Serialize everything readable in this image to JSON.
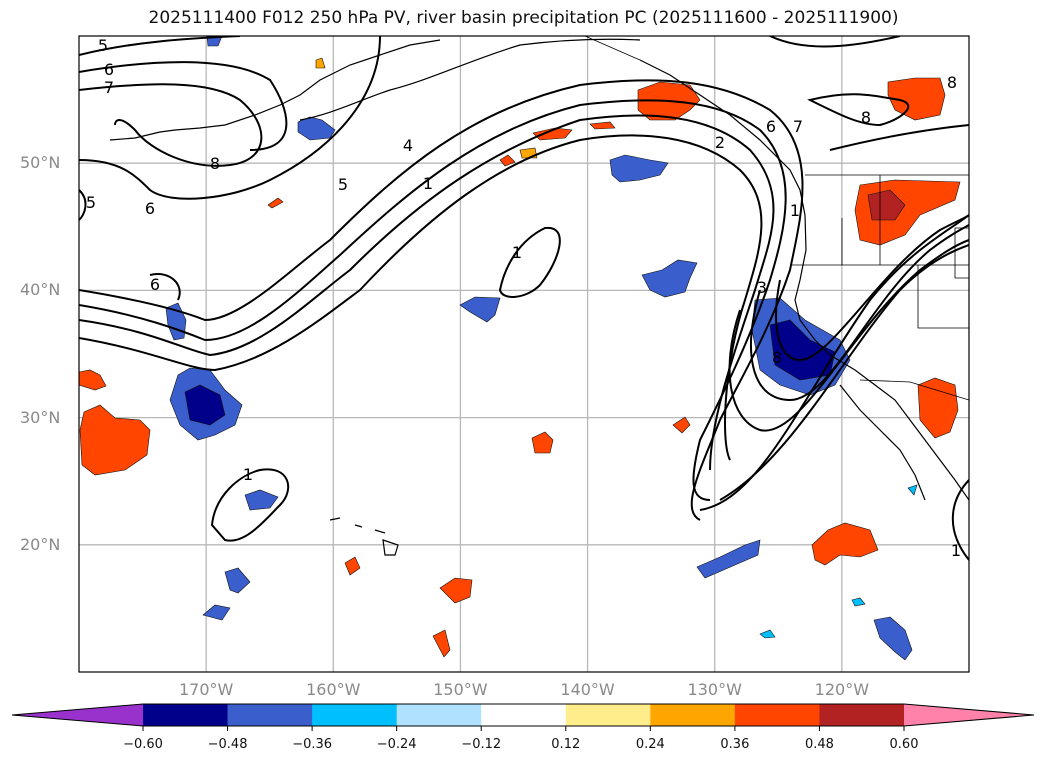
{
  "title": "2025111400 F012 250 hPa PV, river basin precipitation PC (2025111600 - 2025111900)",
  "map": {
    "projection": "PlateCarree",
    "extent_lon": [
      -180,
      -110
    ],
    "extent_lat": [
      10,
      60
    ],
    "lat_ticks": [
      {
        "value": 50,
        "label": "50°N"
      },
      {
        "value": 40,
        "label": "40°N"
      },
      {
        "value": 30,
        "label": "30°N"
      },
      {
        "value": 20,
        "label": "20°N"
      }
    ],
    "lon_ticks": [
      {
        "value": -170,
        "label": "170°W"
      },
      {
        "value": -160,
        "label": "160°W"
      },
      {
        "value": -150,
        "label": "150°W"
      },
      {
        "value": -140,
        "label": "140°W"
      },
      {
        "value": -130,
        "label": "130°W"
      },
      {
        "value": -120,
        "label": "120°W"
      }
    ],
    "gridlines": true,
    "pv_contour_labels": [
      "5",
      "6",
      "7",
      "8",
      "5",
      "6",
      "4",
      "5",
      "1",
      "1",
      "6",
      "1",
      "2",
      "6",
      "7",
      "8",
      "8",
      "3",
      "8",
      "1",
      "1"
    ]
  },
  "colorbar": {
    "orientation": "horizontal",
    "extend": "both",
    "ticks": [
      "−0.60",
      "−0.48",
      "−0.36",
      "−0.24",
      "−0.12",
      "0.12",
      "0.24",
      "0.36",
      "0.48",
      "0.60"
    ],
    "colors": [
      "#9932cc",
      "#00008b",
      "#3a5fcd",
      "#00bfff",
      "#b0e2ff",
      "#ffffff",
      "#ffec8b",
      "#ffa500",
      "#ff4500",
      "#b22222",
      "#ff82ab"
    ]
  },
  "chart_data": {
    "type": "heatmap",
    "title": "2025111400 F012 250 hPa PV, river basin precipitation PC (2025111600 - 2025111900)",
    "fill_variable": "river basin precipitation PC",
    "contour_variable": "250 hPa PV",
    "levels": [
      -0.6,
      -0.48,
      -0.36,
      -0.24,
      -0.12,
      0.12,
      0.24,
      0.36,
      0.48,
      0.6
    ],
    "contour_levels": [
      1,
      2,
      3,
      4,
      5,
      6,
      7,
      8
    ],
    "xlabel": "",
    "ylabel": "",
    "xlim": [
      -180,
      -110
    ],
    "ylim": [
      10,
      60
    ]
  }
}
